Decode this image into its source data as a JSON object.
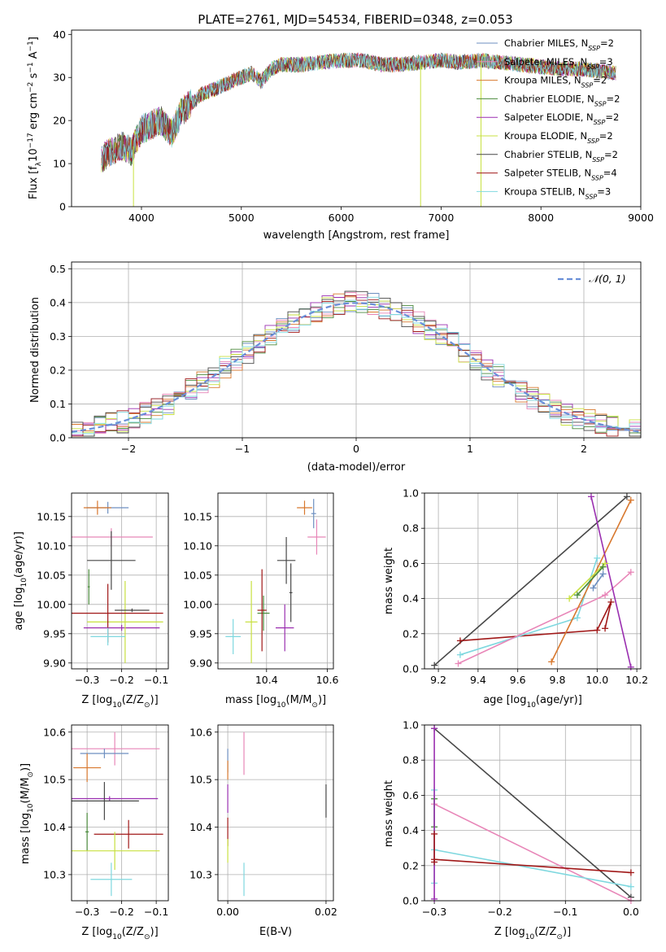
{
  "title": "PLATE=2761, MJD=54534, FIBERID=0348, z=0.053",
  "colors": {
    "chabrier_miles": "#6d8fc0",
    "salpeter_miles": "#e886b8",
    "kroupa_miles": "#d8782e",
    "chabrier_elodie": "#4a8a3c",
    "salpeter_elodie": "#9a2fb0",
    "kroupa_elodie": "#c8e040",
    "chabrier_stelib": "#474747",
    "salpeter_stelib": "#a01818",
    "kroupa_stelib": "#7fd8df",
    "normal_curve": "#6a8fd8",
    "grid": "#b0b0b0"
  },
  "legend_entries": [
    {
      "lib": "Chabrier MILES",
      "n": "2",
      "color": "chabrier_miles"
    },
    {
      "lib": "Salpeter MILES",
      "n": "3",
      "color": "salpeter_miles"
    },
    {
      "lib": "Kroupa MILES",
      "n": "2",
      "color": "kroupa_miles"
    },
    {
      "lib": "Chabrier ELODIE",
      "n": "2",
      "color": "chabrier_elodie"
    },
    {
      "lib": "Salpeter ELODIE",
      "n": "2",
      "color": "salpeter_elodie"
    },
    {
      "lib": "Kroupa ELODIE",
      "n": "2",
      "color": "kroupa_elodie"
    },
    {
      "lib": "Chabrier STELIB",
      "n": "2",
      "color": "chabrier_stelib"
    },
    {
      "lib": "Salpeter STELIB",
      "n": "4",
      "color": "salpeter_stelib"
    },
    {
      "lib": "Kroupa STELIB",
      "n": "3",
      "color": "kroupa_stelib"
    }
  ],
  "normal_legend": "𝒩(0, 1)",
  "chart_data": [
    {
      "id": "spectrum",
      "type": "line",
      "xlabel": "wavelength [Angstrom, rest frame]",
      "ylabel_parts": [
        "Flux [f",
        "λ",
        "10",
        "−17",
        " erg cm",
        "−2",
        " s",
        "−1",
        " A",
        "−1",
        "]"
      ],
      "xlim": [
        3300,
        9000
      ],
      "ylim": [
        0,
        41
      ],
      "xticks": [
        4000,
        5000,
        6000,
        7000,
        8000,
        9000
      ],
      "yticks": [
        0,
        10,
        20,
        30,
        40
      ],
      "continuum": [
        [
          3600,
          11
        ],
        [
          3700,
          13
        ],
        [
          3800,
          14
        ],
        [
          3900,
          13
        ],
        [
          4000,
          18
        ],
        [
          4100,
          19
        ],
        [
          4200,
          20
        ],
        [
          4300,
          17
        ],
        [
          4400,
          22
        ],
        [
          4500,
          24
        ],
        [
          4600,
          26
        ],
        [
          4700,
          27
        ],
        [
          4800,
          28
        ],
        [
          4900,
          29
        ],
        [
          5000,
          30
        ],
        [
          5100,
          31
        ],
        [
          5200,
          29
        ],
        [
          5300,
          32
        ],
        [
          5400,
          33
        ],
        [
          5600,
          33
        ],
        [
          5800,
          33.5
        ],
        [
          6000,
          34
        ],
        [
          6200,
          34
        ],
        [
          6400,
          33
        ],
        [
          6600,
          33
        ],
        [
          6800,
          33.5
        ],
        [
          7000,
          34
        ],
        [
          7200,
          33.5
        ],
        [
          7400,
          34
        ],
        [
          7600,
          33.5
        ],
        [
          7800,
          33
        ],
        [
          8000,
          32.5
        ],
        [
          8200,
          32
        ],
        [
          8400,
          32
        ],
        [
          8600,
          31.5
        ],
        [
          8750,
          31
        ]
      ],
      "spikes": [
        [
          3920,
          0
        ],
        [
          6795,
          0
        ],
        [
          7400,
          0
        ]
      ],
      "grid": false,
      "legend_placement": "upper right"
    },
    {
      "id": "residuals",
      "type": "histogram",
      "xlabel": "(data-model)/error",
      "ylabel": "Normed distribution",
      "xlim": [
        -2.5,
        2.5
      ],
      "ylim": [
        0,
        0.52
      ],
      "xticks": [
        -2,
        -1,
        0,
        1,
        2
      ],
      "yticks": [
        0.0,
        0.1,
        0.2,
        0.3,
        0.4,
        0.5
      ],
      "bin_width": 0.1,
      "normal_curve": {
        "mean": 0,
        "sigma": 1
      },
      "grid": true,
      "legend_placement": "upper right"
    },
    {
      "id": "age_vs_Z",
      "type": "scatter",
      "xlabel_parts": [
        "Z [log",
        "10",
        "(Z/Z",
        "⊙",
        ")]"
      ],
      "ylabel_parts": [
        "age  [log",
        "10",
        "(age/yr)]"
      ],
      "xlim": [
        -0.345,
        -0.065
      ],
      "ylim": [
        9.89,
        10.19
      ],
      "xticks": [
        -0.3,
        -0.2,
        -0.1
      ],
      "yticks": [
        9.9,
        9.95,
        10.0,
        10.05,
        10.1,
        10.15
      ],
      "grid": true,
      "points": [
        {
          "c": "chabrier_miles",
          "x": -0.24,
          "ex": 0.06,
          "y": 10.165,
          "ey": 0.01
        },
        {
          "c": "kroupa_miles",
          "x": -0.27,
          "ex": 0.04,
          "y": 10.165,
          "ey": 0.012
        },
        {
          "c": "salpeter_miles",
          "x": -0.23,
          "ex": 0.12,
          "y": 10.115,
          "ey": 0.015
        },
        {
          "c": "chabrier_stelib",
          "x": -0.23,
          "ex": 0.07,
          "y": 10.075,
          "ey": 0.05
        },
        {
          "c": "chabrier_elodie",
          "x": -0.295,
          "ex": 0.003,
          "y": 10.03,
          "ey": 0.03
        },
        {
          "c": "salpeter_elodie",
          "x": -0.2,
          "ex": 0.11,
          "y": 9.96,
          "ey": 0.005
        },
        {
          "c": "kroupa_elodie",
          "x": -0.19,
          "ex": 0.11,
          "y": 9.97,
          "ey": 0.07
        },
        {
          "c": "salpeter_stelib",
          "x": -0.24,
          "ex": 0.16,
          "y": 9.985,
          "ey": 0.05
        },
        {
          "c": "kroupa_stelib",
          "x": -0.24,
          "ex": 0.05,
          "y": 9.945,
          "ey": 0.015
        },
        {
          "c": "chabrier_stelib",
          "x": -0.17,
          "ex": 0.05,
          "y": 9.99,
          "ey": 0.003
        }
      ]
    },
    {
      "id": "age_vs_mass",
      "type": "scatter",
      "xlabel_parts": [
        "mass [log",
        "10",
        "(M/M",
        "⊙",
        ")]"
      ],
      "xlim": [
        10.24,
        10.62
      ],
      "ylim": [
        9.89,
        10.19
      ],
      "xticks": [
        10.4,
        10.6
      ],
      "yticks": [
        9.9,
        9.95,
        10.0,
        10.05,
        10.1,
        10.15
      ],
      "grid": true,
      "points": [
        {
          "c": "chabrier_miles",
          "x": 10.555,
          "ex": 0.008,
          "y": 10.155,
          "ey": 0.025
        },
        {
          "c": "kroupa_miles",
          "x": 10.525,
          "ex": 0.025,
          "y": 10.165,
          "ey": 0.012
        },
        {
          "c": "salpeter_miles",
          "x": 10.565,
          "ex": 0.03,
          "y": 10.115,
          "ey": 0.03
        },
        {
          "c": "chabrier_stelib",
          "x": 10.465,
          "ex": 0.03,
          "y": 10.075,
          "ey": 0.04
        },
        {
          "c": "chabrier_elodie",
          "x": 10.39,
          "ex": 0.02,
          "y": 9.985,
          "ey": 0.03
        },
        {
          "c": "salpeter_elodie",
          "x": 10.46,
          "ex": 0.03,
          "y": 9.96,
          "ey": 0.04
        },
        {
          "c": "kroupa_elodie",
          "x": 10.35,
          "ex": 0.02,
          "y": 9.97,
          "ey": 0.07
        },
        {
          "c": "salpeter_stelib",
          "x": 10.385,
          "ex": 0.015,
          "y": 9.99,
          "ey": 0.07
        },
        {
          "c": "kroupa_stelib",
          "x": 10.29,
          "ex": 0.025,
          "y": 9.945,
          "ey": 0.03
        },
        {
          "c": "chabrier_stelib",
          "x": 10.48,
          "ex": 0.005,
          "y": 10.02,
          "ey": 0.05
        }
      ]
    },
    {
      "id": "weight_vs_age",
      "type": "line",
      "xlabel_parts": [
        "age  [log",
        "10",
        "(age/yr)]"
      ],
      "ylabel": "mass weight",
      "xlim": [
        9.13,
        10.22
      ],
      "ylim": [
        0,
        1
      ],
      "xticks": [
        9.2,
        9.4,
        9.6,
        9.8,
        10.0,
        10.2
      ],
      "yticks": [
        0.0,
        0.2,
        0.4,
        0.6,
        0.8,
        1.0
      ],
      "grid": true,
      "series": [
        {
          "c": "chabrier_stelib",
          "x": [
            9.18,
            10.15
          ],
          "y": [
            0.02,
            0.98
          ]
        },
        {
          "c": "salpeter_stelib",
          "x": [
            9.31,
            10.0,
            10.07,
            10.04
          ],
          "y": [
            0.16,
            0.22,
            0.38,
            0.23
          ]
        },
        {
          "c": "kroupa_stelib",
          "x": [
            9.31,
            9.9,
            10.0
          ],
          "y": [
            0.08,
            0.29,
            0.63
          ]
        },
        {
          "c": "salpeter_miles",
          "x": [
            9.3,
            10.04,
            10.17
          ],
          "y": [
            0.03,
            0.42,
            0.55
          ]
        },
        {
          "c": "kroupa_miles",
          "x": [
            9.77,
            10.17
          ],
          "y": [
            0.04,
            0.96
          ]
        },
        {
          "c": "salpeter_elodie",
          "x": [
            9.97,
            10.17
          ],
          "y": [
            0.98,
            0.01
          ]
        },
        {
          "c": "kroupa_elodie",
          "x": [
            9.86,
            10.04
          ],
          "y": [
            0.4,
            0.6
          ]
        },
        {
          "c": "chabrier_elodie",
          "x": [
            9.9,
            10.03
          ],
          "y": [
            0.42,
            0.58
          ]
        },
        {
          "c": "chabrier_miles",
          "x": [
            9.98,
            10.03
          ],
          "y": [
            0.46,
            0.54
          ]
        }
      ]
    },
    {
      "id": "mass_vs_Z",
      "type": "scatter",
      "xlabel_parts": [
        "Z [log",
        "10",
        "(Z/Z",
        "⊙",
        ")]"
      ],
      "ylabel_parts": [
        "mass [log",
        "10",
        "(M/M",
        "⊙",
        ")]"
      ],
      "xlim": [
        -0.345,
        -0.065
      ],
      "ylim": [
        10.245,
        10.615
      ],
      "xticks": [
        -0.3,
        -0.2,
        -0.1
      ],
      "yticks": [
        10.3,
        10.4,
        10.5,
        10.6
      ],
      "grid": true,
      "points": [
        {
          "c": "salpeter_miles",
          "x": -0.22,
          "ex": 0.13,
          "y": 10.565,
          "ey": 0.035
        },
        {
          "c": "chabrier_miles",
          "x": -0.25,
          "ex": 0.07,
          "y": 10.555,
          "ey": 0.01
        },
        {
          "c": "kroupa_miles",
          "x": -0.3,
          "ex": 0.04,
          "y": 10.525,
          "ey": 0.03
        },
        {
          "c": "salpeter_elodie",
          "x": -0.235,
          "ex": 0.14,
          "y": 10.46,
          "ey": 0.005
        },
        {
          "c": "chabrier_stelib",
          "x": -0.25,
          "ex": 0.1,
          "y": 10.455,
          "ey": 0.04
        },
        {
          "c": "chabrier_elodie",
          "x": -0.3,
          "ex": 0.005,
          "y": 10.39,
          "ey": 0.04
        },
        {
          "c": "salpeter_stelib",
          "x": -0.18,
          "ex": 0.1,
          "y": 10.385,
          "ey": 0.03
        },
        {
          "c": "kroupa_elodie",
          "x": -0.22,
          "ex": 0.13,
          "y": 10.35,
          "ey": 0.04
        },
        {
          "c": "kroupa_stelib",
          "x": -0.23,
          "ex": 0.06,
          "y": 10.29,
          "ey": 0.035
        }
      ]
    },
    {
      "id": "mass_vs_ebv",
      "type": "scatter",
      "xlabel": "E(B-V)",
      "xlim": [
        -0.002,
        0.0215
      ],
      "ylim": [
        10.245,
        10.615
      ],
      "xticks": [
        0.0,
        0.02
      ],
      "yticks": [
        10.3,
        10.4,
        10.5,
        10.6
      ],
      "grid": true,
      "points": [
        {
          "c": "salpeter_miles",
          "x": 0.0033,
          "ex": 0,
          "y": 10.555,
          "ey": 0.045
        },
        {
          "c": "chabrier_miles",
          "x": 0.0,
          "ex": 0,
          "y": 10.54,
          "ey": 0.025
        },
        {
          "c": "kroupa_miles",
          "x": 0.0,
          "ex": 0,
          "y": 10.52,
          "ey": 0.02
        },
        {
          "c": "salpeter_elodie",
          "x": 0.0,
          "ex": 0,
          "y": 10.46,
          "ey": 0.03
        },
        {
          "c": "salpeter_stelib",
          "x": 0.0,
          "ex": 0,
          "y": 10.39,
          "ey": 0.03
        },
        {
          "c": "kroupa_elodie",
          "x": 0.0,
          "ex": 0,
          "y": 10.35,
          "ey": 0.025
        },
        {
          "c": "kroupa_stelib",
          "x": 0.0033,
          "ex": 0,
          "y": 10.29,
          "ey": 0.035
        },
        {
          "c": "chabrier_stelib",
          "x": 0.02,
          "ex": 0,
          "y": 10.455,
          "ey": 0.035
        }
      ]
    },
    {
      "id": "weight_vs_Z",
      "type": "line",
      "xlabel_parts": [
        "Z [log",
        "10",
        "(Z/Z",
        "⊙",
        ")]"
      ],
      "ylabel": "mass weight",
      "xlim": [
        -0.315,
        0.015
      ],
      "ylim": [
        0,
        1
      ],
      "xticks": [
        -0.3,
        -0.2,
        -0.1,
        0.0
      ],
      "yticks": [
        0.0,
        0.2,
        0.4,
        0.6,
        0.8,
        1.0
      ],
      "grid": true,
      "series": [
        {
          "c": "chabrier_stelib",
          "x": [
            -0.3,
            0.0
          ],
          "y": [
            0.98,
            0.02
          ]
        },
        {
          "c": "salpeter_miles",
          "x": [
            -0.3,
            0.0
          ],
          "y": [
            0.55,
            0.0
          ]
        },
        {
          "c": "kroupa_stelib",
          "x": [
            -0.3,
            0.0
          ],
          "y": [
            0.29,
            0.08
          ]
        },
        {
          "c": "salpeter_stelib",
          "x": [
            -0.3,
            0.0
          ],
          "y": [
            0.235,
            0.16
          ]
        },
        {
          "c": "kroupa_stelib",
          "x": [
            -0.3,
            -0.3
          ],
          "y": [
            0.63,
            0.1
          ]
        },
        {
          "c": "chabrier_elodie",
          "x": [
            -0.3,
            -0.3
          ],
          "y": [
            0.58,
            0.42
          ]
        },
        {
          "c": "salpeter_elodie",
          "x": [
            -0.3,
            -0.3
          ],
          "y": [
            0.98,
            0.01
          ]
        },
        {
          "c": "salpeter_stelib",
          "x": [
            -0.3,
            -0.3
          ],
          "y": [
            0.38,
            0.22
          ]
        }
      ]
    }
  ]
}
